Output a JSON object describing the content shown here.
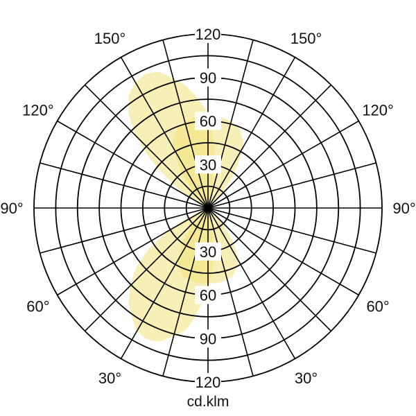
{
  "chart_data": {
    "type": "polar",
    "unit_label": "cd.klm",
    "radial_range": [
      0,
      120
    ],
    "ring_step": 15,
    "ring_labels": [
      "30",
      "60",
      "90",
      "120"
    ],
    "ring_label_values": [
      30,
      60,
      90,
      120
    ],
    "angle_step_deg": 15,
    "angle_labels_left": [
      "30°",
      "60°",
      "90°",
      "120°",
      "150°"
    ],
    "angle_labels_right": [
      "30°",
      "60°",
      "90°",
      "120°",
      "150°"
    ],
    "angle_label_values": [
      30,
      60,
      90,
      120,
      150
    ],
    "grid": true,
    "colors": {
      "lobe_fill": "#f2e27a",
      "grid": "#000000"
    },
    "series": [
      {
        "angles": [
          -15,
          -10,
          -5,
          0,
          10,
          20,
          25,
          30,
          40,
          50,
          55,
          60,
          65,
          70
        ],
        "values": [
          0,
          20,
          40,
          55,
          85,
          98,
          100,
          98,
          85,
          65,
          50,
          30,
          12,
          0
        ]
      },
      {
        "angles": [
          -50,
          -45,
          -38,
          -30,
          -20,
          -10,
          0,
          10,
          20,
          30,
          38,
          45,
          50
        ],
        "values": [
          0,
          8,
          25,
          42,
          50,
          52,
          52,
          52,
          50,
          42,
          25,
          8,
          0
        ]
      },
      {
        "angles": [
          115,
          120,
          125,
          130,
          135,
          140,
          145,
          150,
          155,
          160,
          170,
          180,
          185,
          190,
          195
        ],
        "values": [
          0,
          12,
          30,
          50,
          70,
          85,
          95,
          100,
          102,
          100,
          85,
          65,
          45,
          25,
          0
        ]
      },
      {
        "angles": [
          130,
          138,
          145,
          152,
          160,
          170,
          180,
          190,
          200,
          208,
          215,
          222,
          230
        ],
        "values": [
          0,
          15,
          35,
          52,
          60,
          63,
          64,
          63,
          60,
          52,
          35,
          15,
          0
        ]
      }
    ]
  }
}
